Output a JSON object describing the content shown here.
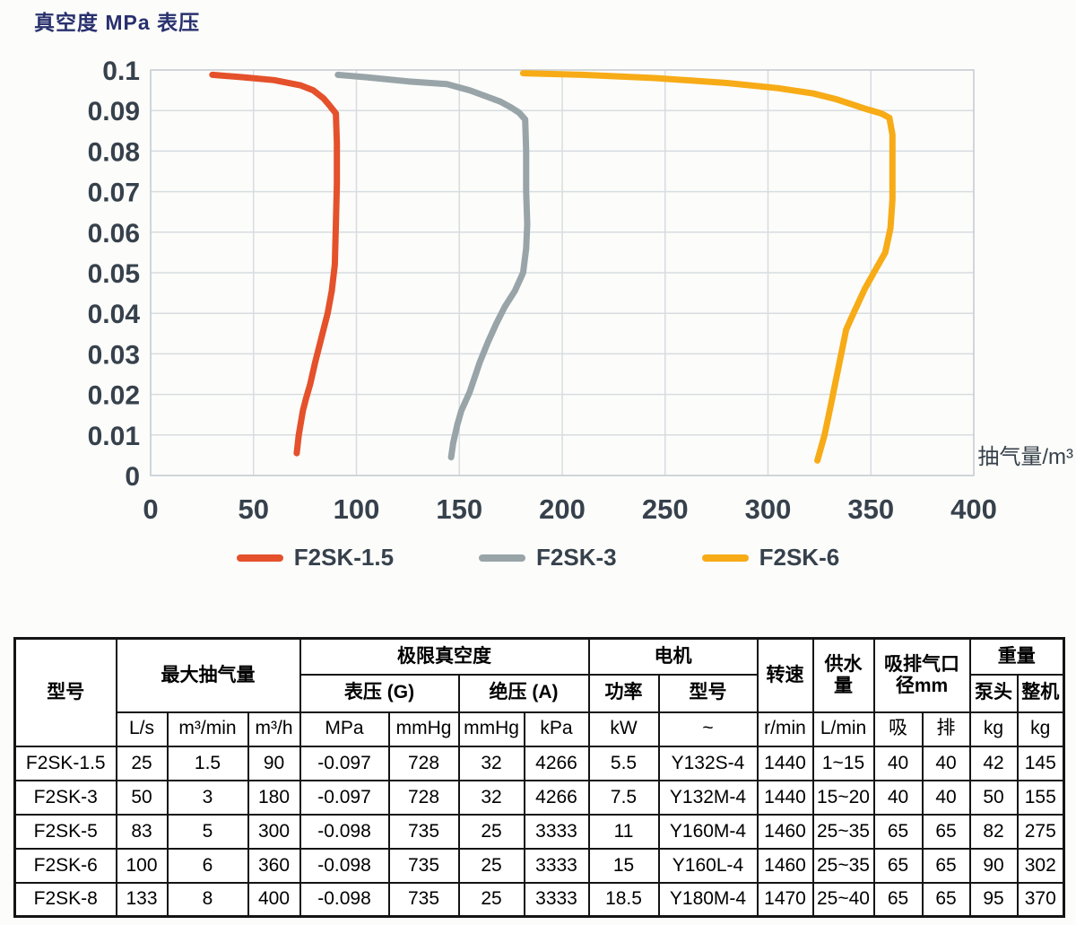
{
  "title": "真空度 MPa 表压",
  "chart_data": {
    "type": "line",
    "title": "真空度 MPa 表压",
    "xlabel": "抽气量/m³",
    "ylabel": "真空度 MPa 表压",
    "xlim": [
      0,
      400
    ],
    "ylim": [
      0,
      0.1
    ],
    "x_ticks": [
      0,
      50,
      100,
      150,
      200,
      250,
      300,
      350,
      400
    ],
    "y_ticks": [
      0,
      0.01,
      0.02,
      0.03,
      0.04,
      0.05,
      0.06,
      0.07,
      0.08,
      0.09,
      0.1
    ],
    "grid": true,
    "legend_position": "bottom",
    "series": [
      {
        "name": "F2SK-1.5",
        "color": "#e4512b",
        "points": [
          [
            30,
            0.0988
          ],
          [
            45,
            0.0982
          ],
          [
            60,
            0.0975
          ],
          [
            73,
            0.0962
          ],
          [
            79,
            0.095
          ],
          [
            84,
            0.093
          ],
          [
            87,
            0.0912
          ],
          [
            90,
            0.0893
          ],
          [
            90.5,
            0.082
          ],
          [
            90.5,
            0.072
          ],
          [
            90,
            0.062
          ],
          [
            89.5,
            0.052
          ],
          [
            88,
            0.0455
          ],
          [
            86,
            0.04
          ],
          [
            83,
            0.034
          ],
          [
            80,
            0.028
          ],
          [
            77.5,
            0.0225
          ],
          [
            75.5,
            0.019
          ],
          [
            74,
            0.016
          ],
          [
            72,
            0.01
          ],
          [
            71,
            0.0055
          ]
        ]
      },
      {
        "name": "F2SK-3",
        "color": "#98a4a8",
        "points": [
          [
            91,
            0.0988
          ],
          [
            105,
            0.0982
          ],
          [
            125,
            0.0972
          ],
          [
            144,
            0.0965
          ],
          [
            155,
            0.095
          ],
          [
            163,
            0.0935
          ],
          [
            170,
            0.0922
          ],
          [
            175,
            0.0908
          ],
          [
            179,
            0.0895
          ],
          [
            182,
            0.0878
          ],
          [
            182.5,
            0.08
          ],
          [
            182.5,
            0.07
          ],
          [
            183,
            0.062
          ],
          [
            182.5,
            0.056
          ],
          [
            181,
            0.05
          ],
          [
            177,
            0.0455
          ],
          [
            172,
            0.0415
          ],
          [
            168,
            0.0375
          ],
          [
            164,
            0.033
          ],
          [
            160,
            0.028
          ],
          [
            157,
            0.0235
          ],
          [
            155,
            0.0205
          ],
          [
            151,
            0.016
          ],
          [
            149,
            0.0125
          ],
          [
            147,
            0.008
          ],
          [
            146,
            0.0045
          ]
        ]
      },
      {
        "name": "F2SK-6",
        "color": "#f7ab16",
        "points": [
          [
            181,
            0.0992
          ],
          [
            210,
            0.0988
          ],
          [
            245,
            0.098
          ],
          [
            280,
            0.0968
          ],
          [
            305,
            0.0955
          ],
          [
            322,
            0.0942
          ],
          [
            333,
            0.0928
          ],
          [
            341,
            0.0915
          ],
          [
            348,
            0.0903
          ],
          [
            355,
            0.0893
          ],
          [
            359,
            0.0882
          ],
          [
            360.5,
            0.084
          ],
          [
            360.5,
            0.076
          ],
          [
            360.5,
            0.068
          ],
          [
            359.5,
            0.061
          ],
          [
            357,
            0.055
          ],
          [
            352,
            0.0505
          ],
          [
            347,
            0.046
          ],
          [
            342,
            0.0405
          ],
          [
            338,
            0.036
          ],
          [
            336,
            0.031
          ],
          [
            334,
            0.026
          ],
          [
            332,
            0.021
          ],
          [
            330,
            0.016
          ],
          [
            327.5,
            0.01
          ],
          [
            324,
            0.0037
          ]
        ]
      }
    ]
  },
  "table": {
    "col_model": "型号",
    "group_max": "最大抽气量",
    "group_vacuum": "极限真空度",
    "group_motor": "电机",
    "col_speed": "转速",
    "col_water": "供水量",
    "col_port": "吸排气口径mm",
    "group_weight": "重量",
    "sub_gauge": "表压 (G)",
    "sub_abs": "绝压 (A)",
    "sub_power": "功率",
    "sub_motor_model": "型号",
    "sub_pump_head": "泵头",
    "sub_whole": "整机",
    "units": [
      "L/s",
      "m³/min",
      "m³/h",
      "MPa",
      "mmHg",
      "mmHg",
      "kPa",
      "kW",
      "~",
      "r/min",
      "L/min",
      "吸",
      "排",
      "kg",
      "kg"
    ],
    "rows": [
      [
        "F2SK-1.5",
        "25",
        "1.5",
        "90",
        "-0.097",
        "728",
        "32",
        "4266",
        "5.5",
        "Y132S-4",
        "1440",
        "1~15",
        "40",
        "40",
        "42",
        "145"
      ],
      [
        "F2SK-3",
        "50",
        "3",
        "180",
        "-0.097",
        "728",
        "32",
        "4266",
        "7.5",
        "Y132M-4",
        "1440",
        "15~20",
        "40",
        "40",
        "50",
        "155"
      ],
      [
        "F2SK-5",
        "83",
        "5",
        "300",
        "-0.098",
        "735",
        "25",
        "3333",
        "11",
        "Y160M-4",
        "1460",
        "25~35",
        "65",
        "65",
        "82",
        "275"
      ],
      [
        "F2SK-6",
        "100",
        "6",
        "360",
        "-0.098",
        "735",
        "25",
        "3333",
        "15",
        "Y160L-4",
        "1460",
        "25~35",
        "65",
        "65",
        "90",
        "302"
      ],
      [
        "F2SK-8",
        "133",
        "8",
        "400",
        "-0.098",
        "735",
        "25",
        "3333",
        "18.5",
        "Y180M-4",
        "1470",
        "25~40",
        "65",
        "65",
        "95",
        "370"
      ]
    ]
  }
}
